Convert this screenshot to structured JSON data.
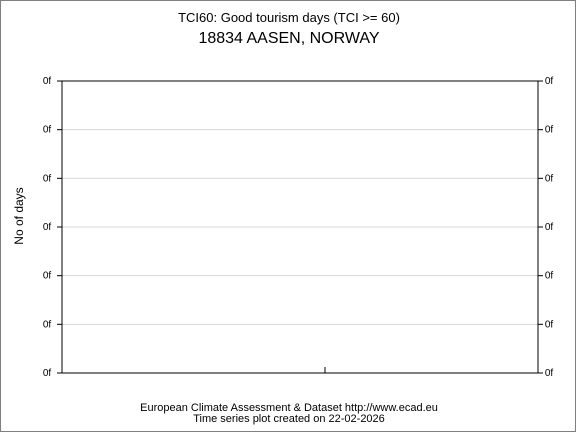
{
  "chart_data": {
    "type": "line",
    "title": "TCI60: Good tourism days (TCI >= 60)",
    "subtitle": "18834 AASEN, NORWAY",
    "xlabel": "",
    "ylabel": "No of days",
    "y_ticks": [
      "0f",
      "0f",
      "0f",
      "0f",
      "0f",
      "0f",
      "0f"
    ],
    "series": [],
    "grid": true
  },
  "footer": {
    "line1": "European Climate Assessment & Dataset  http://www.ecad.eu",
    "line2": "Time series plot created on 22-02-2026"
  }
}
